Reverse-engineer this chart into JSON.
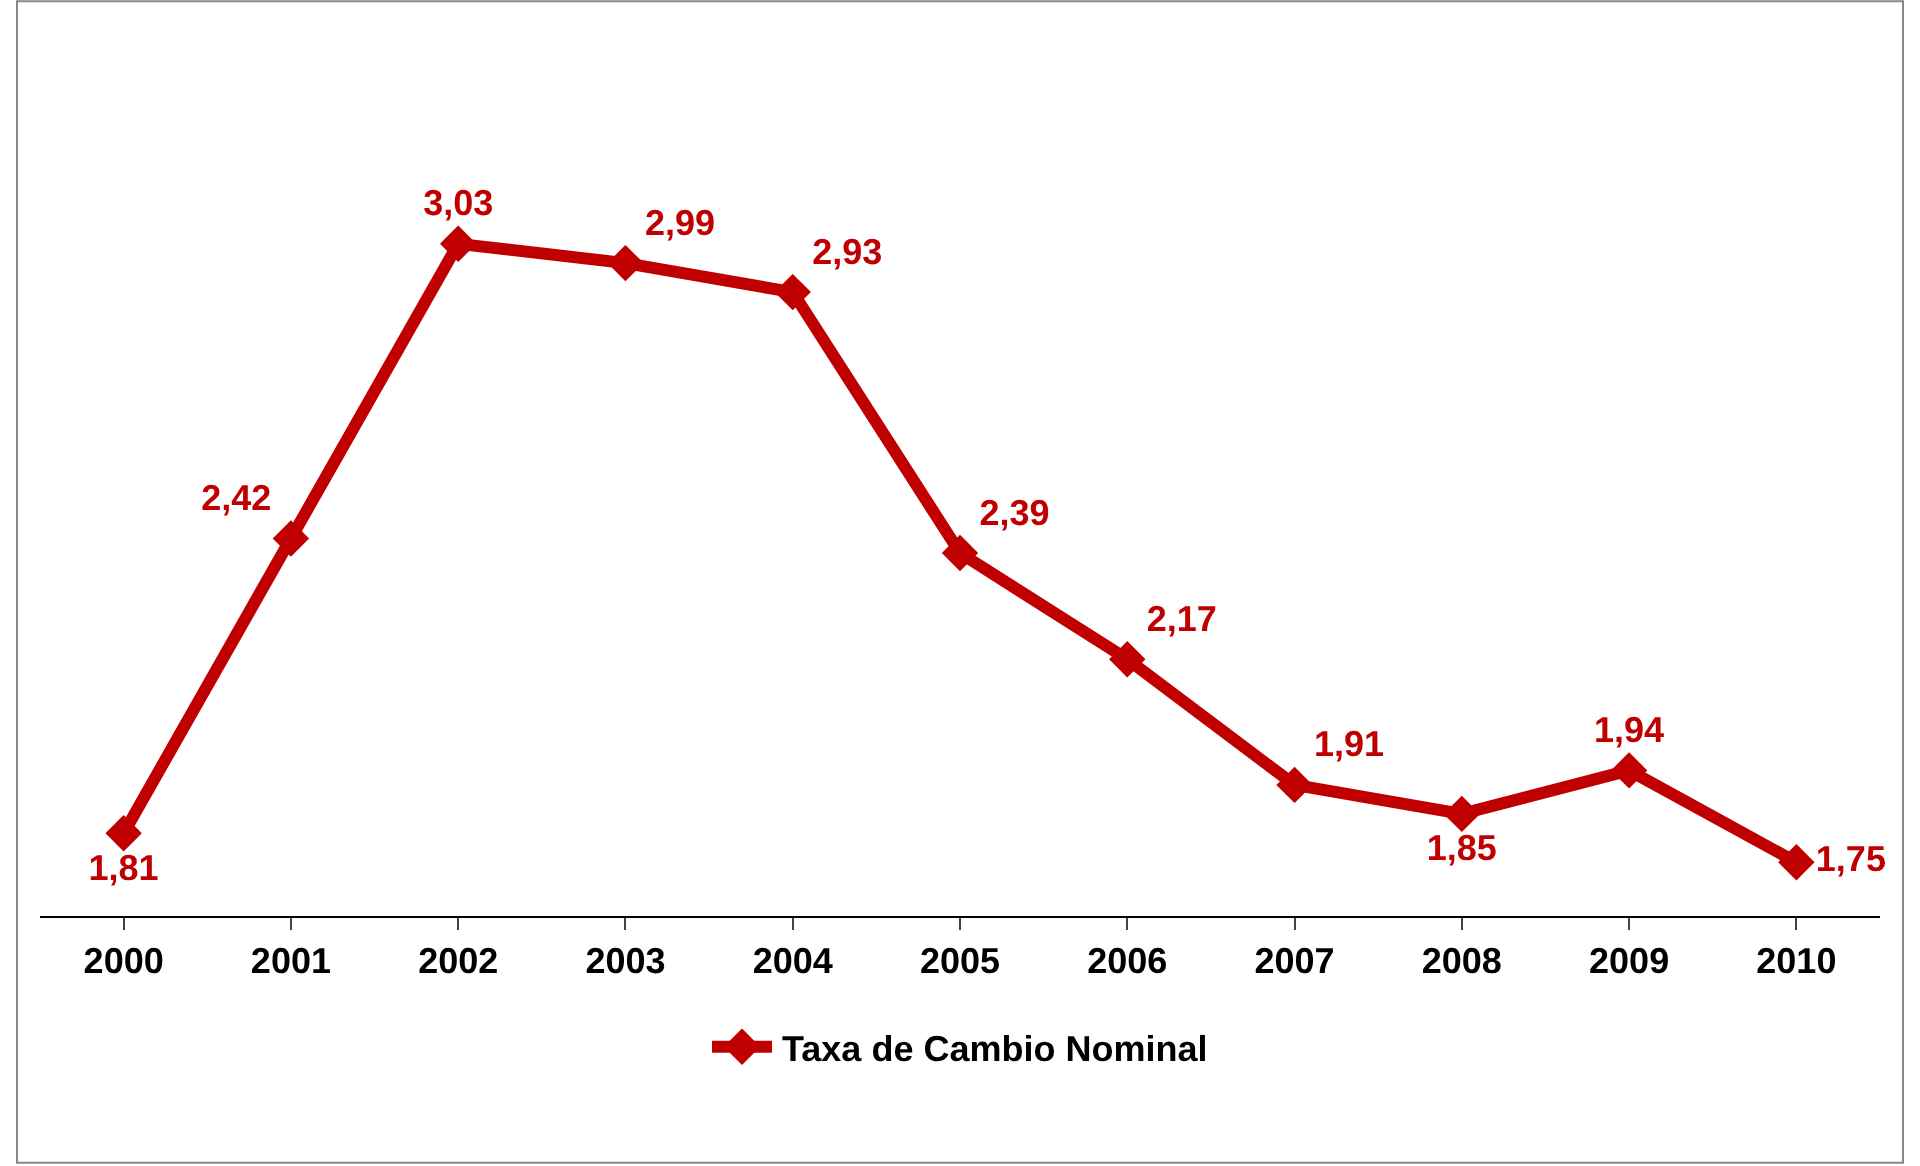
{
  "chart_data": {
    "type": "line",
    "categories": [
      "2000",
      "2001",
      "2002",
      "2003",
      "2004",
      "2005",
      "2006",
      "2007",
      "2008",
      "2009",
      "2010"
    ],
    "series": [
      {
        "name": "Taxa de Cambio Nominal",
        "color": "#c00000",
        "values": [
          1.81,
          2.42,
          3.03,
          2.99,
          2.93,
          2.39,
          2.17,
          1.91,
          1.85,
          1.94,
          1.75
        ],
        "value_labels": [
          "1,81",
          "2,42",
          "3,03",
          "2,99",
          "2,93",
          "2,39",
          "2,17",
          "1,91",
          "1,85",
          "1,94",
          "1,75"
        ]
      }
    ],
    "marker": "diamond",
    "line_style": "solid",
    "legend": "bottom",
    "grid": false,
    "tick_labels": "x"
  }
}
